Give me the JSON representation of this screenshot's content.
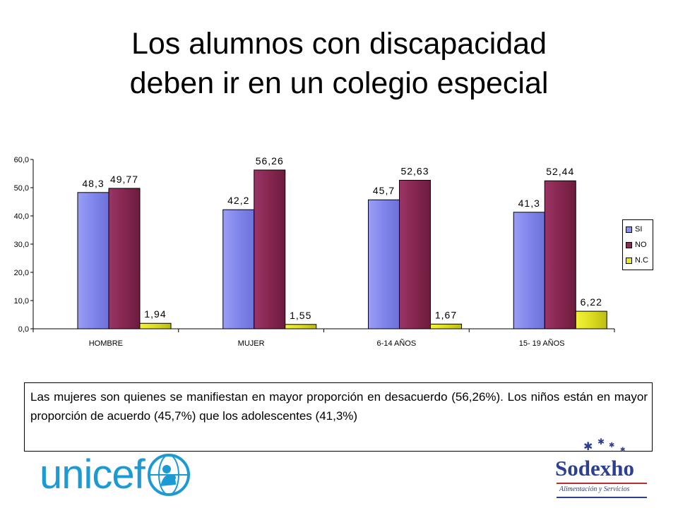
{
  "slide": {
    "title_line1": "Los alumnos con discapacidad",
    "title_line2": "deben ir en un colegio especial",
    "caption": "Las mujeres son quienes se manifiestan en mayor proporción en desacuerdo (56,26%). Los niños están en mayor proporción de acuerdo (45,7%) que los adolescentes (41,3%)"
  },
  "logos": {
    "unicef": "unicef",
    "sodexho": "Sodexho",
    "sodexho_tagline": "Alimentación y Servicios"
  },
  "chart_data": {
    "type": "bar",
    "categories": [
      "HOMBRE",
      "MUJER",
      "6-14 AÑOS",
      "15- 19 AÑOS"
    ],
    "series": [
      {
        "name": "SI",
        "values": [
          48.3,
          42.2,
          45.7,
          41.3
        ],
        "labels": [
          "48,3",
          "42,2",
          "45,7",
          "41,3"
        ],
        "color": "#8b8ff0"
      },
      {
        "name": "NO",
        "values": [
          49.77,
          56.26,
          52.63,
          52.44
        ],
        "labels": [
          "49,77",
          "56,26",
          "52,63",
          "52,44"
        ],
        "color": "#8e2a5a"
      },
      {
        "name": "N.C",
        "values": [
          1.94,
          1.55,
          1.67,
          6.22
        ],
        "labels": [
          "1,94",
          "1,55",
          "1,67",
          "6,22"
        ],
        "color": "#e6e62a"
      }
    ],
    "ylim": [
      0,
      60
    ],
    "yticks": [
      0,
      10,
      20,
      30,
      40,
      50,
      60
    ],
    "ytick_labels": [
      "0,0",
      "10,0",
      "20,0",
      "30,0",
      "40,0",
      "50,0",
      "60,0"
    ],
    "legend_position": "right",
    "grid": false
  },
  "colors": {
    "unicef_blue": "#1c9ad6",
    "sodexho_blue": "#2c3f93",
    "sodexho_red": "#c0282d"
  }
}
